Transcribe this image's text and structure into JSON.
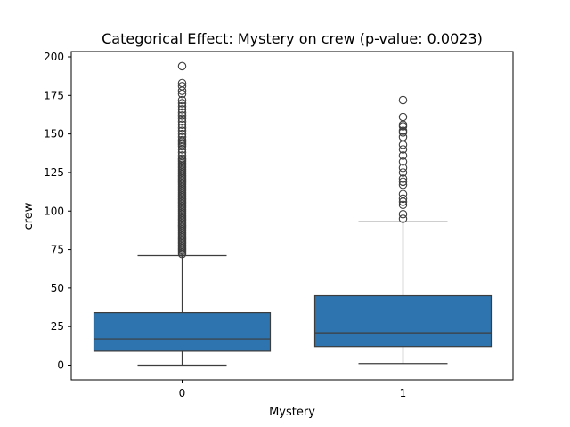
{
  "chart_data": {
    "type": "boxplot",
    "title": "Categorical Effect: Mystery on crew (p-value: 0.0023)",
    "xlabel": "Mystery",
    "ylabel": "crew",
    "categories": [
      "0",
      "1"
    ],
    "ylim": [
      -10,
      206
    ],
    "yticks": [
      "0",
      "25",
      "50",
      "75",
      "100",
      "125",
      "150",
      "175",
      "200"
    ],
    "grid": false,
    "box_color": "#2e75b0",
    "line_color": "#3d3d3d",
    "boxes": [
      {
        "category": "0",
        "whisker_low": 0,
        "q1": 9,
        "median": 17,
        "q3": 34,
        "whisker_high": 71,
        "outliers": [
          72,
          73,
          74,
          75,
          76,
          77,
          78,
          79,
          80,
          81,
          82,
          83,
          84,
          85,
          86,
          87,
          88,
          89,
          90,
          91,
          92,
          93,
          94,
          95,
          96,
          97,
          98,
          99,
          100,
          101,
          102,
          103,
          104,
          105,
          106,
          107,
          108,
          109,
          110,
          111,
          112,
          113,
          114,
          115,
          116,
          117,
          118,
          119,
          120,
          121,
          122,
          123,
          124,
          125,
          126,
          127,
          128,
          129,
          130,
          131,
          132,
          133,
          134,
          136,
          138,
          140,
          142,
          143,
          144,
          145,
          146,
          148,
          150,
          152,
          154,
          156,
          158,
          160,
          162,
          164,
          166,
          168,
          170,
          172,
          176,
          178,
          181,
          183,
          194
        ]
      },
      {
        "category": "1",
        "whisker_low": 1,
        "q1": 12,
        "median": 21,
        "q3": 45,
        "whisker_high": 93,
        "outliers": [
          95,
          98,
          104,
          106,
          108,
          111,
          117,
          119,
          121,
          125,
          128,
          132,
          136,
          140,
          143,
          148,
          151,
          152,
          155,
          156,
          161,
          172
        ]
      }
    ]
  }
}
